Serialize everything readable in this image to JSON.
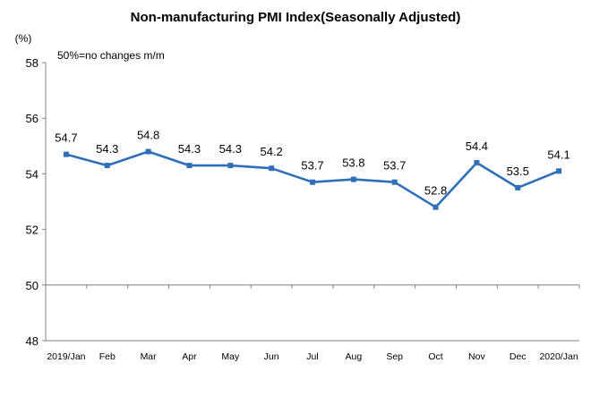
{
  "chart_data": {
    "type": "line",
    "title": "Non-manufacturing PMI Index(Seasonally Adjusted)",
    "ylabel": "(%)",
    "annotation": "50%=no changes m/m",
    "categories": [
      "2019/Jan",
      "Feb",
      "Mar",
      "Apr",
      "May",
      "Jun",
      "Jul",
      "Aug",
      "Sep",
      "Oct",
      "Nov",
      "Dec",
      "2020/Jan"
    ],
    "values": [
      54.7,
      54.3,
      54.8,
      54.3,
      54.3,
      54.2,
      53.7,
      53.8,
      53.7,
      52.8,
      54.4,
      53.5,
      54.1
    ],
    "data_labels": [
      "54.7",
      "54.3",
      "54.8",
      "54.3",
      "54.3",
      "54.2",
      "53.7",
      "53.8",
      "53.7",
      "52.8",
      "54.4",
      "53.5",
      "54.1"
    ],
    "ylim": [
      48,
      58
    ],
    "yticks": [
      "48",
      "50",
      "52",
      "54",
      "56",
      "58"
    ],
    "grid": false,
    "line_color": "#2e6fba",
    "marker_color": "#2e6fba",
    "axis_color": "#808080"
  }
}
